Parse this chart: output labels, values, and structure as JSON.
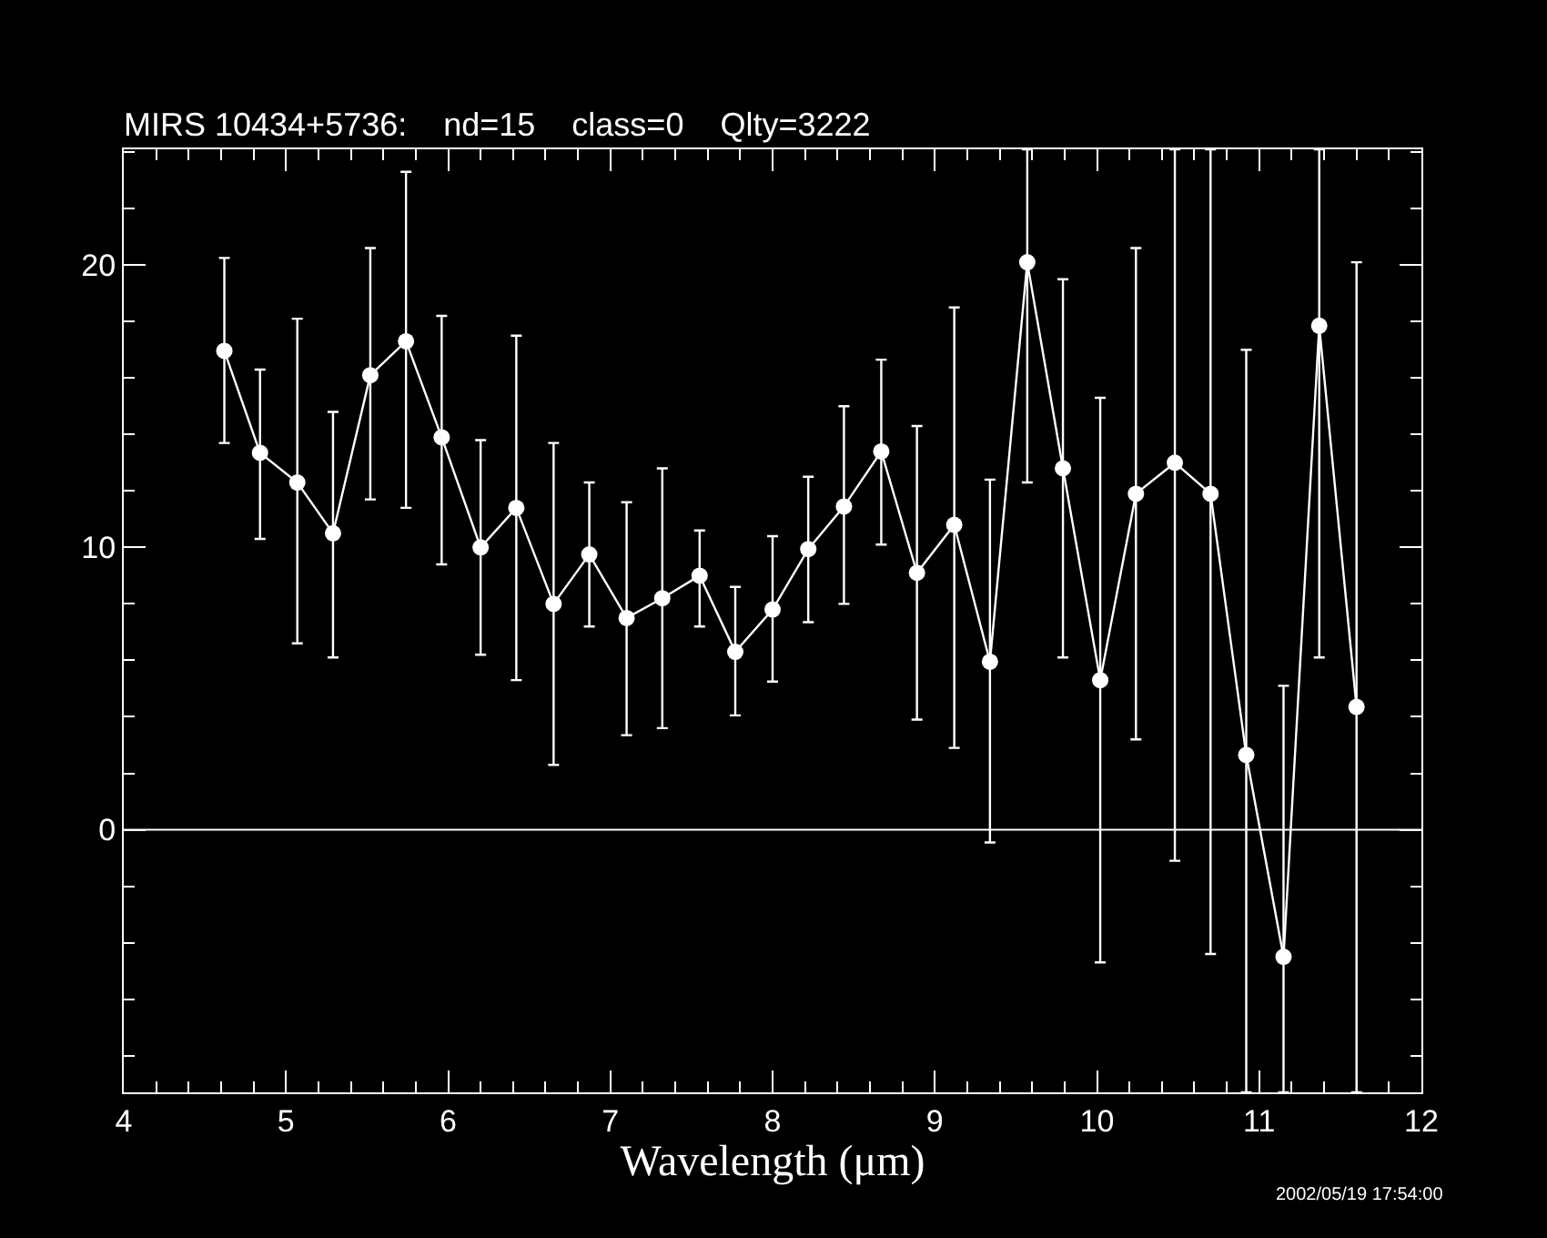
{
  "chart_data": {
    "type": "line",
    "title": "MIRS 10434+5736:    nd=15    class=0    Qlty=3222",
    "xlabel": "Wavelength (μm)",
    "x": [
      4.62,
      4.84,
      5.07,
      5.29,
      5.52,
      5.74,
      5.96,
      6.2,
      6.42,
      6.65,
      6.87,
      7.1,
      7.32,
      7.55,
      7.77,
      8.0,
      8.22,
      8.44,
      8.67,
      8.89,
      9.12,
      9.34,
      9.57,
      9.79,
      10.02,
      10.24,
      10.48,
      10.7,
      10.92,
      11.15,
      11.37,
      11.6
    ],
    "series": [
      {
        "color": "#ffffff",
        "values": [
          16.96,
          13.35,
          12.3,
          10.5,
          16.1,
          17.3,
          13.9,
          10.0,
          11.4,
          8.0,
          9.75,
          7.5,
          8.2,
          9.0,
          6.3,
          7.8,
          9.94,
          11.45,
          13.4,
          9.1,
          10.8,
          5.95,
          20.1,
          12.8,
          5.3,
          11.9,
          13.0,
          11.9,
          2.65,
          -4.5,
          17.85,
          4.35
        ],
        "errors": [
          [
            13.7,
            20.25
          ],
          [
            10.3,
            16.3
          ],
          [
            6.6,
            18.1
          ],
          [
            6.1,
            14.8
          ],
          [
            11.7,
            20.6
          ],
          [
            11.4,
            23.3
          ],
          [
            9.4,
            18.2
          ],
          [
            6.2,
            13.8
          ],
          [
            5.3,
            17.5
          ],
          [
            2.3,
            13.7
          ],
          [
            7.2,
            12.3
          ],
          [
            3.35,
            11.6
          ],
          [
            3.6,
            12.8
          ],
          [
            7.2,
            10.6
          ],
          [
            4.05,
            8.6
          ],
          [
            5.25,
            10.4
          ],
          [
            7.35,
            12.5
          ],
          [
            8.0,
            15.0
          ],
          [
            10.1,
            16.65
          ],
          [
            3.9,
            14.3
          ],
          [
            2.9,
            18.5
          ],
          [
            -0.45,
            12.4
          ],
          [
            12.3,
            24.1
          ],
          [
            6.1,
            19.5
          ],
          [
            -4.7,
            15.3
          ],
          [
            3.2,
            20.6
          ],
          [
            -1.1,
            24.1
          ],
          [
            -4.4,
            24.1
          ],
          [
            -9.3,
            17.0
          ],
          [
            -9.3,
            5.1
          ],
          [
            6.1,
            24.1
          ],
          [
            -9.3,
            20.1
          ]
        ]
      }
    ],
    "xlim": [
      4,
      12
    ],
    "xticks": [
      4,
      5,
      6,
      7,
      8,
      9,
      10,
      11,
      12
    ],
    "ylim": [
      -9.3,
      24.1
    ],
    "yticks": [
      0,
      10,
      20
    ],
    "ref_lines": [
      {
        "axis": "y",
        "value": 0,
        "color": "#ffffff"
      }
    ],
    "annotations": [
      "2002/05/19 17:54:00"
    ],
    "marker": "circle",
    "line_style": "solid",
    "grid": false,
    "legend": false
  }
}
